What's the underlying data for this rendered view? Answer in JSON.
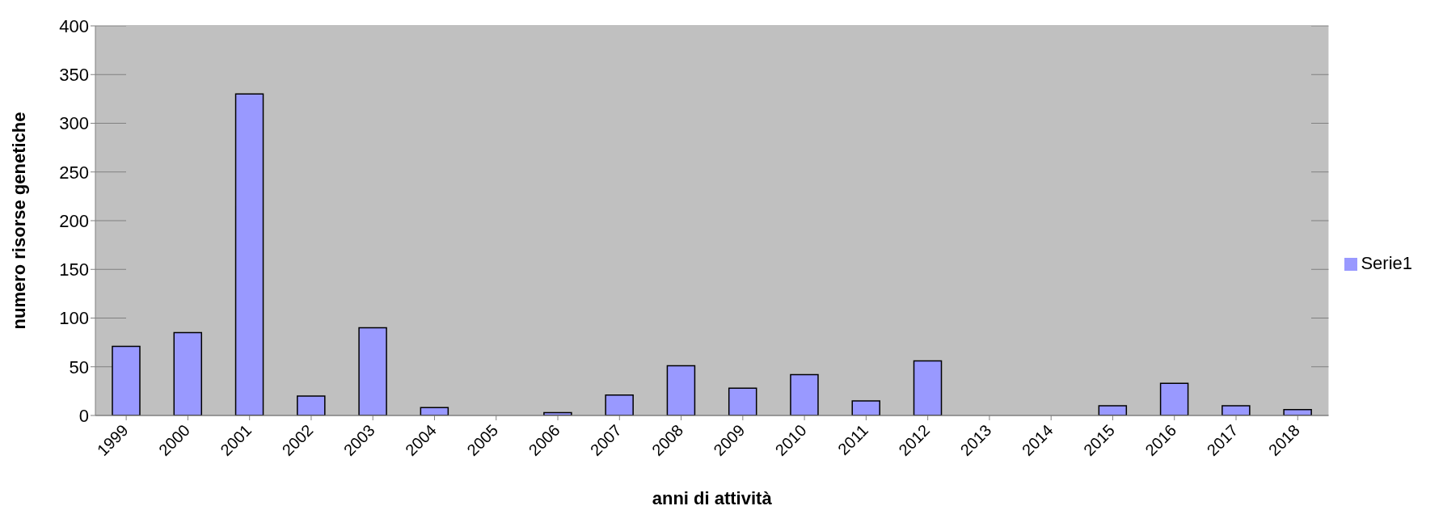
{
  "chart_data": {
    "type": "bar",
    "xlabel": "anni di attività",
    "ylabel": "numero risorse genetiche",
    "categories": [
      "1999",
      "2000",
      "2001",
      "2002",
      "2003",
      "2004",
      "2005",
      "2006",
      "2007",
      "2008",
      "2009",
      "2010",
      "2011",
      "2012",
      "2013",
      "2014",
      "2015",
      "2016",
      "2017",
      "2018"
    ],
    "series": [
      {
        "name": "Serie1",
        "color": "#9999ff",
        "values": [
          71,
          85,
          330,
          20,
          90,
          8,
          0,
          3,
          21,
          51,
          28,
          42,
          15,
          56,
          0,
          0,
          10,
          33,
          10,
          6
        ]
      }
    ],
    "ylim": [
      0,
      400
    ],
    "yticks": [
      0,
      50,
      100,
      150,
      200,
      250,
      300,
      350,
      400
    ],
    "grid": "y",
    "legend": "right"
  }
}
